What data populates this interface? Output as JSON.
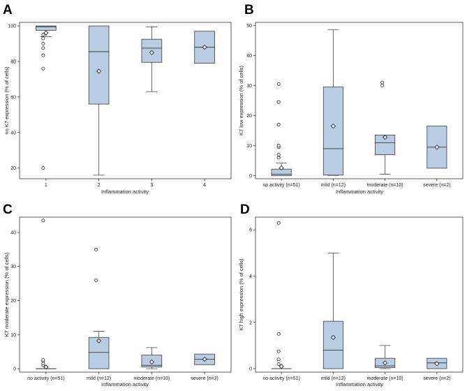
{
  "figure": {
    "colors": {
      "box_fill": "#b8cce4",
      "box_stroke": "#3a3a3a",
      "frame": "#333333",
      "whisker": "#444444"
    }
  },
  "chart_data": [
    {
      "type": "box",
      "panel_letter": "A",
      "ylabel": "no K7 expression (% of cells)",
      "xlabel": "Inflammation activity",
      "ylim": [
        14,
        102
      ],
      "yticks": [
        20,
        40,
        60,
        80,
        100
      ],
      "categories": [
        "1",
        "2",
        "3",
        "4"
      ],
      "boxes": [
        {
          "q1": 97.5,
          "median": 99.5,
          "q3": 100,
          "whisker_low": 94,
          "whisker_high": 100,
          "mean": 96,
          "outliers": [
            95,
            93,
            90,
            87.5,
            83.5,
            76,
            20
          ]
        },
        {
          "q1": 56,
          "median": 85.5,
          "q3": 100,
          "whisker_low": 16,
          "whisker_high": 100,
          "mean": 74.5,
          "outliers": []
        },
        {
          "q1": 79.5,
          "median": 87.5,
          "q3": 92.5,
          "whisker_low": 63,
          "whisker_high": 99.5,
          "mean": 85,
          "outliers": []
        },
        {
          "q1": 79,
          "median": 88,
          "q3": 97,
          "whisker_low": 79,
          "whisker_high": 97,
          "mean": 88,
          "outliers": []
        }
      ]
    },
    {
      "type": "box",
      "panel_letter": "B",
      "ylabel": "K7 low expression (% of cells)",
      "xlabel": "Inflammation activity",
      "ylim": [
        -1,
        51
      ],
      "yticks": [
        0,
        10,
        20,
        30,
        40,
        50
      ],
      "categories": [
        "no activity (n=51)",
        "mild (n=12)",
        "moderate (n=10)",
        "severe (n=2)"
      ],
      "boxes": [
        {
          "q1": 0,
          "median": 0.5,
          "q3": 2.2,
          "whisker_low": 0,
          "whisker_high": 4.2,
          "mean": 2.6,
          "outliers": [
            6,
            7,
            9.5,
            10,
            17,
            24.5,
            30.5
          ]
        },
        {
          "q1": 0.2,
          "median": 9,
          "q3": 29.5,
          "whisker_low": 0.1,
          "whisker_high": 48.5,
          "mean": 16.5,
          "outliers": []
        },
        {
          "q1": 7,
          "median": 11,
          "q3": 13.5,
          "whisker_low": 0.5,
          "whisker_high": 13.5,
          "mean": 12.8,
          "outliers": [
            30,
            31
          ]
        },
        {
          "q1": 2.5,
          "median": 9.5,
          "q3": 16.5,
          "whisker_low": 2.5,
          "whisker_high": 16.5,
          "mean": 9.5,
          "outliers": []
        }
      ]
    },
    {
      "type": "box",
      "panel_letter": "C",
      "ylabel": "K7 moderate expression (% of cells)",
      "xlabel": "Inflammation activity",
      "ylim": [
        -1,
        44.5
      ],
      "yticks": [
        0,
        10,
        20,
        30,
        40
      ],
      "categories": [
        "no activity (n=51)",
        "mild (n=12)",
        "moderate (n=10)",
        "severe (n=2)"
      ],
      "boxes": [
        {
          "q1": 0,
          "median": 0,
          "q3": 0,
          "whisker_low": 0,
          "whisker_high": 0,
          "mean": 0.5,
          "outliers": [
            1,
            1.5,
            2.2,
            2.6,
            43.5
          ]
        },
        {
          "q1": 0,
          "median": 4.8,
          "q3": 9.2,
          "whisker_low": 0,
          "whisker_high": 11,
          "mean": 8.2,
          "outliers": [
            26,
            35
          ]
        },
        {
          "q1": 0.5,
          "median": 1,
          "q3": 4,
          "whisker_low": 0,
          "whisker_high": 6.2,
          "mean": 2,
          "outliers": []
        },
        {
          "q1": 1.2,
          "median": 2.8,
          "q3": 4.3,
          "whisker_low": 1.2,
          "whisker_high": 4.3,
          "mean": 2.8,
          "outliers": []
        }
      ]
    },
    {
      "type": "box",
      "panel_letter": "D",
      "ylabel": "K7 high expression (% of cells)",
      "xlabel": "Inflammation activity",
      "ylim": [
        -0.15,
        6.55
      ],
      "yticks": [
        0,
        2,
        4,
        6
      ],
      "categories": [
        "no activity (n=51)",
        "mild (n=12)",
        "moderate (n=10)",
        "severe (n=2)"
      ],
      "boxes": [
        {
          "q1": 0,
          "median": 0,
          "q3": 0,
          "whisker_low": 0,
          "whisker_high": 0,
          "mean": 0.1,
          "outliers": [
            0.2,
            0.4,
            0.75,
            1.5,
            6.3
          ]
        },
        {
          "q1": 0,
          "median": 0.8,
          "q3": 2.05,
          "whisker_low": 0,
          "whisker_high": 5,
          "mean": 1.35,
          "outliers": []
        },
        {
          "q1": 0.05,
          "median": 0.12,
          "q3": 0.45,
          "whisker_low": 0,
          "whisker_high": 1,
          "mean": 0.25,
          "outliers": []
        },
        {
          "q1": 0,
          "median": 0.25,
          "q3": 0.45,
          "whisker_low": 0,
          "whisker_high": 0.45,
          "mean": 0.22,
          "outliers": []
        }
      ]
    }
  ]
}
